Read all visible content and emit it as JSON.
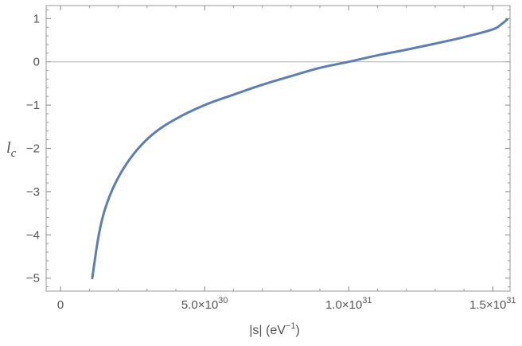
{
  "chart_data": {
    "type": "line",
    "title": "",
    "xlabel": "|s| (eV",
    "xlabel_sup": "−1",
    "xlabel_close": ")",
    "ylabel": "l",
    "ylabel_sub": "c",
    "xlim": [
      -5e+29,
      1.56e+31
    ],
    "ylim": [
      -5.3,
      1.3
    ],
    "x_ticks": [
      {
        "value": 0,
        "mantissa": "0",
        "exponent": ""
      },
      {
        "value": 5e+30,
        "mantissa": "5.0×10",
        "exponent": "30"
      },
      {
        "value": 1e+31,
        "mantissa": "1.0×10",
        "exponent": "31"
      },
      {
        "value": 1.5e+31,
        "mantissa": "1.5×10",
        "exponent": "31"
      }
    ],
    "y_ticks": [
      {
        "value": 1,
        "label": "1"
      },
      {
        "value": 0,
        "label": "0"
      },
      {
        "value": -1,
        "label": "−1"
      },
      {
        "value": -2,
        "label": "−2"
      },
      {
        "value": -3,
        "label": "−3"
      },
      {
        "value": -4,
        "label": "−4"
      },
      {
        "value": -5,
        "label": "−5"
      }
    ],
    "grid": false,
    "reference_line_y": 0,
    "series": [
      {
        "color": "#5b7fb5",
        "x": [
          1.1e+30,
          1.3e+30,
          1.5e+30,
          1.8e+30,
          2.2e+30,
          2.7e+30,
          3.3e+30,
          4e+30,
          5e+30,
          6e+30,
          7e+30,
          8e+30,
          9e+30,
          1e+31,
          1.1e+31,
          1.2e+31,
          1.3e+31,
          1.4e+31,
          1.5e+31,
          1.53e+31,
          1.55e+31
        ],
        "y": [
          -5.0,
          -4.1,
          -3.5,
          -2.95,
          -2.45,
          -2.0,
          -1.62,
          -1.32,
          -1.0,
          -0.76,
          -0.53,
          -0.33,
          -0.14,
          0.0,
          0.15,
          0.28,
          0.42,
          0.57,
          0.75,
          0.87,
          0.98
        ]
      }
    ]
  }
}
